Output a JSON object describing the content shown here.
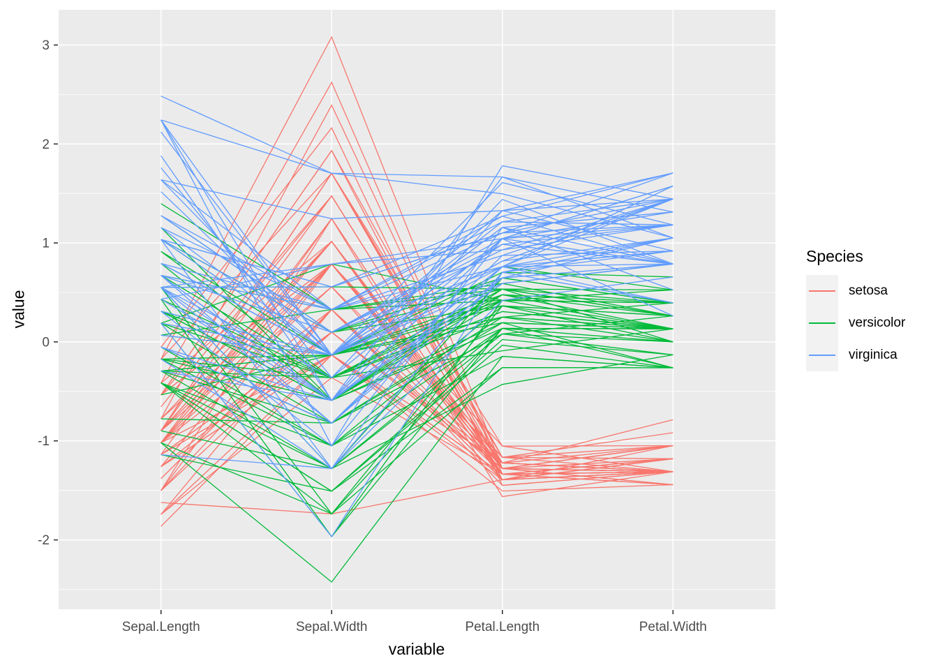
{
  "figure": {
    "background": "#FFFFFF",
    "panel_background": "#EBEBEB",
    "grid_color": "#FFFFFF",
    "tick_mark_color": "#333333",
    "tick_label_color": "#4D4D4D",
    "axis_title_color": "#000000",
    "legend_key_background": "#F2F2F2"
  },
  "chart_data": {
    "type": "line",
    "variant": "parallel-coordinates",
    "title": "",
    "xlabel": "variable",
    "ylabel": "value",
    "categories": [
      "Sepal.Length",
      "Sepal.Width",
      "Petal.Length",
      "Petal.Width"
    ],
    "yticks": [
      -2,
      -1,
      0,
      1,
      2,
      3
    ],
    "ylim": [
      -2.7,
      3.36
    ],
    "grid": "major and minor horizontal white lines, vertical white line at each category",
    "transform": "each variable standardized to z-scores before plotting",
    "legend": {
      "title": "Species",
      "position": "right",
      "entries": [
        {
          "label": "setosa",
          "color": "#F8766D"
        },
        {
          "label": "versicolor",
          "color": "#00BA38"
        },
        {
          "label": "virginica",
          "color": "#619CFF"
        }
      ]
    },
    "series": [
      {
        "name": "setosa",
        "color": "#F8766D",
        "rows": [
          [
            5.1,
            3.5,
            1.4,
            0.2
          ],
          [
            4.9,
            3.0,
            1.4,
            0.2
          ],
          [
            4.7,
            3.2,
            1.3,
            0.2
          ],
          [
            4.6,
            3.1,
            1.5,
            0.2
          ],
          [
            5.0,
            3.6,
            1.4,
            0.2
          ],
          [
            5.4,
            3.9,
            1.7,
            0.4
          ],
          [
            4.6,
            3.4,
            1.4,
            0.3
          ],
          [
            5.0,
            3.4,
            1.5,
            0.2
          ],
          [
            4.4,
            2.9,
            1.4,
            0.2
          ],
          [
            4.9,
            3.1,
            1.5,
            0.1
          ],
          [
            5.4,
            3.7,
            1.5,
            0.2
          ],
          [
            4.8,
            3.4,
            1.6,
            0.2
          ],
          [
            4.8,
            3.0,
            1.4,
            0.1
          ],
          [
            4.3,
            3.0,
            1.1,
            0.1
          ],
          [
            5.8,
            4.0,
            1.2,
            0.2
          ],
          [
            5.7,
            4.4,
            1.5,
            0.4
          ],
          [
            5.4,
            3.9,
            1.3,
            0.4
          ],
          [
            5.1,
            3.5,
            1.4,
            0.3
          ],
          [
            5.7,
            3.8,
            1.7,
            0.3
          ],
          [
            5.1,
            3.8,
            1.5,
            0.3
          ],
          [
            5.4,
            3.4,
            1.7,
            0.2
          ],
          [
            5.1,
            3.7,
            1.5,
            0.4
          ],
          [
            4.6,
            3.6,
            1.0,
            0.2
          ],
          [
            5.1,
            3.3,
            1.7,
            0.5
          ],
          [
            4.8,
            3.4,
            1.9,
            0.2
          ],
          [
            5.0,
            3.0,
            1.6,
            0.2
          ],
          [
            5.0,
            3.4,
            1.6,
            0.4
          ],
          [
            5.2,
            3.5,
            1.5,
            0.2
          ],
          [
            5.2,
            3.4,
            1.4,
            0.2
          ],
          [
            4.7,
            3.2,
            1.6,
            0.2
          ],
          [
            4.8,
            3.1,
            1.6,
            0.2
          ],
          [
            5.4,
            3.4,
            1.5,
            0.4
          ],
          [
            5.2,
            4.1,
            1.5,
            0.1
          ],
          [
            5.5,
            4.2,
            1.4,
            0.2
          ],
          [
            4.9,
            3.1,
            1.5,
            0.2
          ],
          [
            5.0,
            3.2,
            1.2,
            0.2
          ],
          [
            5.5,
            3.5,
            1.3,
            0.2
          ],
          [
            4.9,
            3.6,
            1.4,
            0.1
          ],
          [
            4.4,
            3.0,
            1.3,
            0.2
          ],
          [
            5.1,
            3.4,
            1.5,
            0.2
          ],
          [
            5.0,
            3.5,
            1.3,
            0.3
          ],
          [
            4.5,
            2.3,
            1.3,
            0.3
          ],
          [
            4.4,
            3.2,
            1.3,
            0.2
          ],
          [
            5.0,
            3.5,
            1.6,
            0.6
          ],
          [
            5.1,
            3.8,
            1.9,
            0.4
          ],
          [
            4.8,
            3.0,
            1.4,
            0.3
          ],
          [
            5.1,
            3.8,
            1.6,
            0.2
          ],
          [
            4.6,
            3.2,
            1.4,
            0.2
          ],
          [
            5.3,
            3.7,
            1.5,
            0.2
          ],
          [
            5.0,
            3.3,
            1.4,
            0.2
          ]
        ]
      },
      {
        "name": "versicolor",
        "color": "#00BA38",
        "rows": [
          [
            7.0,
            3.2,
            4.7,
            1.4
          ],
          [
            6.4,
            3.2,
            4.5,
            1.5
          ],
          [
            6.9,
            3.1,
            4.9,
            1.5
          ],
          [
            5.5,
            2.3,
            4.0,
            1.3
          ],
          [
            6.5,
            2.8,
            4.6,
            1.5
          ],
          [
            5.7,
            2.8,
            4.5,
            1.3
          ],
          [
            6.3,
            3.3,
            4.7,
            1.6
          ],
          [
            4.9,
            2.4,
            3.3,
            1.0
          ],
          [
            6.6,
            2.9,
            4.6,
            1.3
          ],
          [
            5.2,
            2.7,
            3.9,
            1.4
          ],
          [
            5.0,
            2.0,
            3.5,
            1.0
          ],
          [
            5.9,
            3.0,
            4.2,
            1.5
          ],
          [
            6.0,
            2.2,
            4.0,
            1.0
          ],
          [
            6.1,
            2.9,
            4.7,
            1.4
          ],
          [
            5.6,
            2.9,
            3.6,
            1.3
          ],
          [
            6.7,
            3.1,
            4.4,
            1.4
          ],
          [
            5.6,
            3.0,
            4.5,
            1.5
          ],
          [
            5.8,
            2.7,
            4.1,
            1.0
          ],
          [
            6.2,
            2.2,
            4.5,
            1.5
          ],
          [
            5.6,
            2.5,
            3.9,
            1.1
          ],
          [
            5.9,
            3.2,
            4.8,
            1.8
          ],
          [
            6.1,
            2.8,
            4.0,
            1.3
          ],
          [
            6.3,
            2.5,
            4.9,
            1.5
          ],
          [
            6.1,
            2.8,
            4.7,
            1.2
          ],
          [
            6.4,
            2.9,
            4.3,
            1.3
          ],
          [
            6.6,
            3.0,
            4.4,
            1.4
          ],
          [
            6.8,
            2.8,
            4.8,
            1.4
          ],
          [
            6.7,
            3.0,
            5.0,
            1.7
          ],
          [
            6.0,
            2.9,
            4.5,
            1.5
          ],
          [
            5.7,
            2.6,
            3.5,
            1.0
          ],
          [
            5.5,
            2.4,
            3.8,
            1.1
          ],
          [
            5.5,
            2.4,
            3.7,
            1.0
          ],
          [
            5.8,
            2.7,
            3.9,
            1.2
          ],
          [
            6.0,
            2.7,
            5.1,
            1.6
          ],
          [
            5.4,
            3.0,
            4.5,
            1.5
          ],
          [
            6.0,
            3.4,
            4.5,
            1.6
          ],
          [
            6.7,
            3.1,
            4.7,
            1.5
          ],
          [
            6.3,
            2.3,
            4.4,
            1.3
          ],
          [
            5.6,
            3.0,
            4.1,
            1.3
          ],
          [
            5.5,
            2.5,
            4.0,
            1.3
          ],
          [
            5.5,
            2.6,
            4.4,
            1.2
          ],
          [
            6.1,
            3.0,
            4.6,
            1.4
          ],
          [
            5.8,
            2.6,
            4.0,
            1.2
          ],
          [
            5.0,
            2.3,
            3.3,
            1.0
          ],
          [
            5.6,
            2.7,
            4.2,
            1.3
          ],
          [
            5.7,
            3.0,
            4.2,
            1.2
          ],
          [
            5.7,
            2.9,
            4.2,
            1.3
          ],
          [
            6.2,
            2.9,
            4.3,
            1.3
          ],
          [
            5.1,
            2.5,
            3.0,
            1.1
          ],
          [
            5.7,
            2.8,
            4.1,
            1.3
          ]
        ]
      },
      {
        "name": "virginica",
        "color": "#619CFF",
        "rows": [
          [
            6.3,
            3.3,
            6.0,
            2.5
          ],
          [
            5.8,
            2.7,
            5.1,
            1.9
          ],
          [
            7.1,
            3.0,
            5.9,
            2.1
          ],
          [
            6.3,
            2.9,
            5.6,
            1.8
          ],
          [
            6.5,
            3.0,
            5.8,
            2.2
          ],
          [
            7.6,
            3.0,
            6.6,
            2.1
          ],
          [
            4.9,
            2.5,
            4.5,
            1.7
          ],
          [
            7.3,
            2.9,
            6.3,
            1.8
          ],
          [
            6.7,
            2.5,
            5.8,
            1.8
          ],
          [
            7.2,
            3.6,
            6.1,
            2.5
          ],
          [
            6.5,
            3.2,
            5.1,
            2.0
          ],
          [
            6.4,
            2.7,
            5.3,
            1.9
          ],
          [
            6.8,
            3.0,
            5.5,
            2.1
          ],
          [
            5.7,
            2.5,
            5.0,
            2.0
          ],
          [
            5.8,
            2.8,
            5.1,
            2.4
          ],
          [
            6.4,
            3.2,
            5.3,
            2.3
          ],
          [
            6.5,
            3.0,
            5.5,
            1.8
          ],
          [
            7.7,
            3.8,
            6.7,
            2.2
          ],
          [
            7.7,
            2.6,
            6.9,
            2.3
          ],
          [
            6.0,
            2.2,
            5.0,
            1.5
          ],
          [
            6.9,
            3.2,
            5.7,
            2.3
          ],
          [
            5.6,
            2.8,
            4.9,
            2.0
          ],
          [
            7.7,
            2.8,
            6.7,
            2.0
          ],
          [
            6.3,
            2.7,
            4.9,
            1.8
          ],
          [
            6.7,
            3.3,
            5.7,
            2.1
          ],
          [
            7.2,
            3.2,
            6.0,
            1.8
          ],
          [
            6.2,
            2.8,
            4.8,
            1.8
          ],
          [
            6.1,
            3.0,
            4.9,
            1.8
          ],
          [
            6.4,
            2.8,
            5.6,
            2.1
          ],
          [
            7.2,
            3.0,
            5.8,
            1.6
          ],
          [
            7.4,
            2.8,
            6.1,
            1.9
          ],
          [
            7.9,
            3.8,
            6.4,
            2.0
          ],
          [
            6.4,
            2.8,
            5.6,
            2.2
          ],
          [
            6.3,
            2.8,
            5.1,
            1.5
          ],
          [
            6.1,
            2.6,
            5.6,
            1.4
          ],
          [
            7.7,
            3.0,
            6.1,
            2.3
          ],
          [
            6.3,
            3.4,
            5.6,
            2.4
          ],
          [
            6.4,
            3.1,
            5.5,
            1.8
          ],
          [
            6.0,
            3.0,
            4.8,
            1.8
          ],
          [
            6.9,
            3.1,
            5.4,
            2.1
          ],
          [
            6.7,
            3.1,
            5.6,
            2.4
          ],
          [
            6.9,
            3.1,
            5.1,
            2.3
          ],
          [
            5.8,
            2.7,
            5.1,
            1.9
          ],
          [
            6.8,
            3.2,
            5.9,
            2.3
          ],
          [
            6.7,
            3.3,
            5.7,
            2.5
          ],
          [
            6.7,
            3.0,
            5.2,
            2.3
          ],
          [
            6.3,
            2.5,
            5.0,
            1.9
          ],
          [
            6.5,
            3.0,
            5.2,
            2.0
          ],
          [
            6.2,
            3.4,
            5.4,
            2.3
          ],
          [
            5.9,
            3.0,
            5.1,
            1.8
          ]
        ]
      }
    ]
  }
}
